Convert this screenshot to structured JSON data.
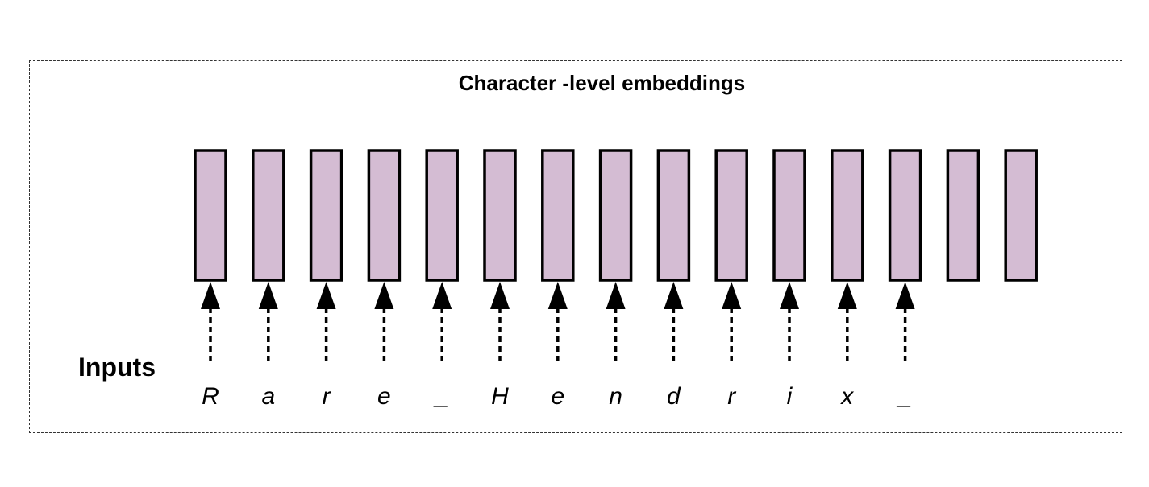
{
  "title": "Character -level embeddings",
  "inputs_label": "Inputs",
  "colors": {
    "embedding_fill": "#d4bcd3",
    "embedding_stroke": "#000000",
    "arrow": "#000000",
    "frame": "#333333"
  },
  "embedding_count": 15,
  "characters": [
    "R",
    "a",
    "r",
    "e",
    "_",
    "H",
    "e",
    "n",
    "d",
    "r",
    "i",
    "x",
    "_"
  ]
}
